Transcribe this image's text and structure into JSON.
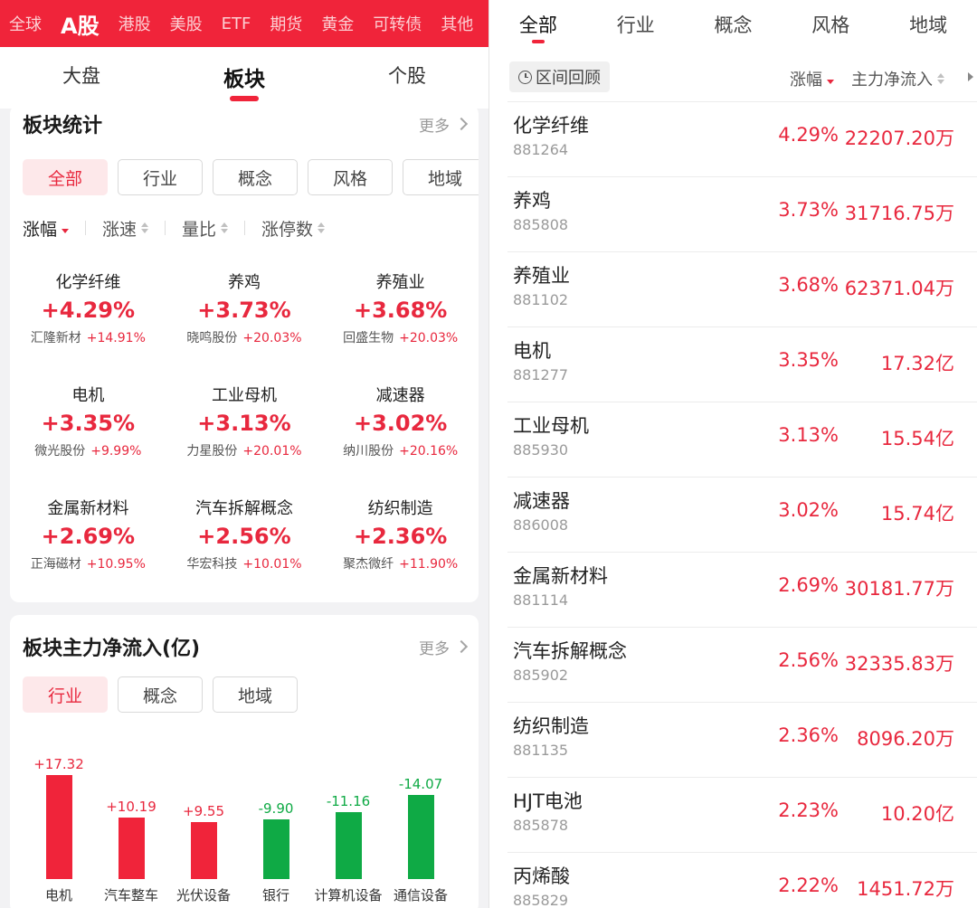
{
  "markets": [
    "全球",
    "A股",
    "港股",
    "美股",
    "ETF",
    "期货",
    "黄金",
    "可转债",
    "其他"
  ],
  "segments": [
    "大盘",
    "板块",
    "个股"
  ],
  "stats": {
    "title": "板块统计",
    "more": "更多",
    "filters": [
      "全部",
      "行业",
      "概念",
      "风格",
      "地域"
    ],
    "sorts": [
      "涨幅",
      "涨速",
      "量比",
      "涨停数"
    ],
    "items": [
      {
        "name": "化学纤维",
        "pct": "+4.29%",
        "stock": "汇隆新材",
        "stock_pct": "+14.91%"
      },
      {
        "name": "养鸡",
        "pct": "+3.73%",
        "stock": "晓鸣股份",
        "stock_pct": "+20.03%"
      },
      {
        "name": "养殖业",
        "pct": "+3.68%",
        "stock": "回盛生物",
        "stock_pct": "+20.03%"
      },
      {
        "name": "电机",
        "pct": "+3.35%",
        "stock": "微光股份",
        "stock_pct": "+9.99%"
      },
      {
        "name": "工业母机",
        "pct": "+3.13%",
        "stock": "力星股份",
        "stock_pct": "+20.01%"
      },
      {
        "name": "减速器",
        "pct": "+3.02%",
        "stock": "纳川股份",
        "stock_pct": "+20.16%"
      },
      {
        "name": "金属新材料",
        "pct": "+2.69%",
        "stock": "正海磁材",
        "stock_pct": "+10.95%"
      },
      {
        "name": "汽车拆解概念",
        "pct": "+2.56%",
        "stock": "华宏科技",
        "stock_pct": "+10.01%"
      },
      {
        "name": "纺织制造",
        "pct": "+2.36%",
        "stock": "聚杰微纤",
        "stock_pct": "+11.90%"
      }
    ]
  },
  "flow": {
    "title": "板块主力净流入(亿)",
    "more": "更多",
    "filters": [
      "行业",
      "概念",
      "地域"
    ]
  },
  "chart_data": {
    "type": "bar",
    "title": "板块主力净流入(亿)",
    "categories": [
      "电机",
      "汽车整车",
      "光伏设备",
      "银行",
      "计算机设备",
      "通信设备"
    ],
    "values": [
      17.32,
      10.19,
      9.55,
      -9.9,
      -11.16,
      -14.07
    ],
    "labels": [
      "+17.32",
      "+10.19",
      "+9.55",
      "-9.90",
      "-11.16",
      "-14.07"
    ],
    "colors": {
      "positive": "#f0243a",
      "negative": "#0faa45"
    }
  },
  "right": {
    "tabs": [
      "全部",
      "行业",
      "概念",
      "风格",
      "地域"
    ],
    "range_label": "区间回顾",
    "col_pct": "涨幅",
    "col_flow": "主力净流入",
    "rows": [
      {
        "name": "化学纤维",
        "code": "881264",
        "pct": "4.29%",
        "flow": "22207.20万"
      },
      {
        "name": "养鸡",
        "code": "885808",
        "pct": "3.73%",
        "flow": "31716.75万"
      },
      {
        "name": "养殖业",
        "code": "881102",
        "pct": "3.68%",
        "flow": "62371.04万"
      },
      {
        "name": "电机",
        "code": "881277",
        "pct": "3.35%",
        "flow": "17.32亿"
      },
      {
        "name": "工业母机",
        "code": "885930",
        "pct": "3.13%",
        "flow": "15.54亿"
      },
      {
        "name": "减速器",
        "code": "886008",
        "pct": "3.02%",
        "flow": "15.74亿"
      },
      {
        "name": "金属新材料",
        "code": "881114",
        "pct": "2.69%",
        "flow": "30181.77万"
      },
      {
        "name": "汽车拆解概念",
        "code": "885902",
        "pct": "2.56%",
        "flow": "32335.83万"
      },
      {
        "name": "纺织制造",
        "code": "881135",
        "pct": "2.36%",
        "flow": "8096.20万"
      },
      {
        "name": "HJT电池",
        "code": "885878",
        "pct": "2.23%",
        "flow": "10.20亿"
      },
      {
        "name": "丙烯酸",
        "code": "885829",
        "pct": "2.22%",
        "flow": "1451.72万"
      }
    ]
  },
  "colors": {
    "accent": "#f0243a",
    "up": "#e8283e",
    "down": "#0faa45"
  }
}
